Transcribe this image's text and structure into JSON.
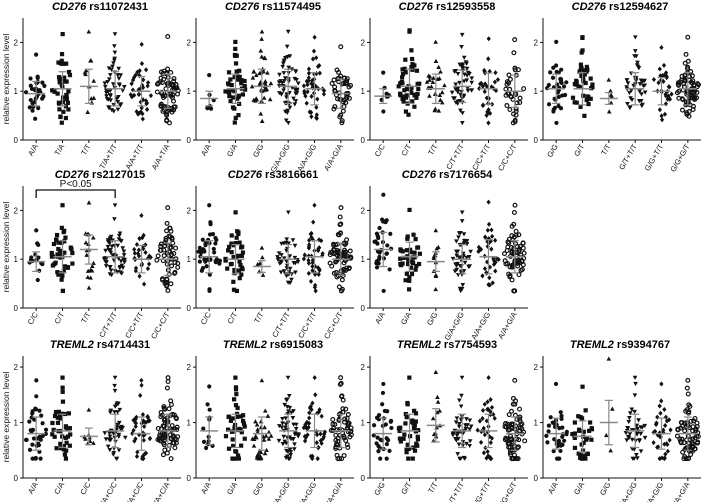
{
  "chart_data": [
    {
      "type": "scatter",
      "gene": "CD276",
      "snp": "rs11072431",
      "ylabel": "relative expression level",
      "ylim": [
        0,
        2.5
      ],
      "yticks": [
        "0",
        "1",
        "2"
      ],
      "categories": [
        "A/A",
        "T/A",
        "T/T",
        "T/A+T/T",
        "A/A+T/T",
        "A/A+T/A"
      ],
      "counts": [
        30,
        42,
        12,
        48,
        38,
        70
      ],
      "centers": [
        0.95,
        1.05,
        1.1,
        1.05,
        1.0,
        1.0
      ],
      "spreads": [
        0.25,
        0.35,
        0.35,
        0.35,
        0.3,
        0.35
      ],
      "shapes": [
        "circle",
        "square",
        "triangle",
        "tri-down",
        "diamond",
        "open-circle"
      ]
    },
    {
      "type": "scatter",
      "gene": "CD276",
      "snp": "rs11574495",
      "ylabel": "",
      "ylim": [
        0,
        2.5
      ],
      "yticks": [
        "0",
        "1",
        "2"
      ],
      "categories": [
        "A/A",
        "G/A",
        "G/G",
        "G/A+G/G",
        "A/A+G/G",
        "A/A+G/A"
      ],
      "counts": [
        6,
        42,
        40,
        58,
        44,
        46
      ],
      "centers": [
        0.85,
        1.05,
        1.1,
        1.1,
        1.05,
        0.95
      ],
      "spreads": [
        0.15,
        0.3,
        0.35,
        0.35,
        0.33,
        0.3
      ],
      "shapes": [
        "circle",
        "square",
        "triangle",
        "tri-down",
        "diamond",
        "open-circle"
      ]
    },
    {
      "type": "scatter",
      "gene": "CD276",
      "snp": "rs12593558",
      "ylabel": "",
      "ylim": [
        0,
        2.5
      ],
      "yticks": [
        "0",
        "1",
        "2"
      ],
      "categories": [
        "C/C",
        "C/T",
        "T/T",
        "C/T+T/T",
        "C/C+T/T",
        "C/C+C/T"
      ],
      "counts": [
        8,
        46,
        26,
        50,
        32,
        34
      ],
      "centers": [
        0.9,
        1.1,
        1.05,
        1.1,
        1.05,
        1.0
      ],
      "spreads": [
        0.15,
        0.35,
        0.3,
        0.33,
        0.32,
        0.33
      ],
      "shapes": [
        "circle",
        "square",
        "triangle",
        "tri-down",
        "diamond",
        "open-circle"
      ]
    },
    {
      "type": "scatter",
      "gene": "CD276",
      "snp": "rs12594627",
      "ylabel": "",
      "ylim": [
        0,
        2.5
      ],
      "yticks": [
        "0",
        "1",
        "2"
      ],
      "categories": [
        "G/G",
        "G/T",
        "T/T",
        "G/T+T/T",
        "G/G+T/T",
        "G/G+G/T"
      ],
      "counts": [
        34,
        40,
        6,
        40,
        30,
        72
      ],
      "centers": [
        1.05,
        1.05,
        0.85,
        1.05,
        1.0,
        1.05
      ],
      "spreads": [
        0.3,
        0.33,
        0.12,
        0.33,
        0.28,
        0.33
      ],
      "shapes": [
        "circle",
        "square",
        "triangle",
        "tri-down",
        "diamond",
        "open-circle"
      ]
    },
    {
      "type": "scatter",
      "gene": "CD276",
      "snp": "rs2127015",
      "ylabel": "relative expression level",
      "ylim": [
        0,
        2.5
      ],
      "yticks": [
        "0",
        "1",
        "2"
      ],
      "categories": [
        "C/C",
        "C/T",
        "T/T",
        "C/T+T/T",
        "C/C+T/T",
        "C/C+C/T"
      ],
      "counts": [
        14,
        44,
        18,
        56,
        28,
        58
      ],
      "centers": [
        0.95,
        1.05,
        1.2,
        1.05,
        1.0,
        1.0
      ],
      "spreads": [
        0.2,
        0.33,
        0.3,
        0.33,
        0.28,
        0.33
      ],
      "shapes": [
        "circle",
        "square",
        "triangle",
        "tri-down",
        "diamond",
        "open-circle"
      ],
      "annotation": {
        "text": "P<0.05",
        "from_category": 0,
        "to_category": 3
      }
    },
    {
      "type": "scatter",
      "gene": "CD276",
      "snp": "rs3816661",
      "ylabel": "",
      "ylim": [
        0,
        2.5
      ],
      "yticks": [
        "0",
        "1",
        "2"
      ],
      "categories": [
        "C/C",
        "C/T",
        "T/T",
        "C/T+T/T",
        "C/C+T/T",
        "C/C+C/T"
      ],
      "counts": [
        40,
        38,
        6,
        40,
        40,
        72
      ],
      "centers": [
        1.05,
        1.0,
        0.85,
        1.0,
        1.05,
        1.0
      ],
      "spreads": [
        0.33,
        0.3,
        0.12,
        0.3,
        0.33,
        0.33
      ],
      "shapes": [
        "circle",
        "square",
        "triangle",
        "tri-down",
        "diamond",
        "open-circle"
      ]
    },
    {
      "type": "scatter",
      "gene": "CD276",
      "snp": "rs7176654",
      "ylabel": "",
      "ylim": [
        0,
        2.5
      ],
      "yticks": [
        "0",
        "1",
        "2"
      ],
      "categories": [
        "A/A",
        "G/A",
        "G/G",
        "G/A+G/G",
        "A/A+G/G",
        "A/A+G/A"
      ],
      "counts": [
        32,
        38,
        12,
        46,
        36,
        70
      ],
      "centers": [
        1.2,
        1.05,
        0.95,
        1.0,
        1.05,
        1.05
      ],
      "spreads": [
        0.35,
        0.3,
        0.2,
        0.3,
        0.35,
        0.33
      ],
      "shapes": [
        "circle",
        "square",
        "triangle",
        "tri-down",
        "diamond",
        "open-circle"
      ]
    },
    {
      "type": "scatter",
      "gene": "TREML2",
      "snp": "rs4714431",
      "ylabel": "relative expression level",
      "ylim": [
        0,
        2.2
      ],
      "yticks": [
        "0",
        "1",
        "2"
      ],
      "categories": [
        "A/A",
        "C/A",
        "C/C",
        "C/A+C/C",
        "A/A+C/C",
        "A/A+C/A"
      ],
      "counts": [
        34,
        40,
        8,
        44,
        38,
        72
      ],
      "centers": [
        0.8,
        0.85,
        0.75,
        0.85,
        0.8,
        0.85
      ],
      "spreads": [
        0.3,
        0.3,
        0.15,
        0.3,
        0.3,
        0.3
      ],
      "shapes": [
        "circle",
        "square",
        "triangle",
        "tri-down",
        "diamond",
        "open-circle"
      ]
    },
    {
      "type": "scatter",
      "gene": "TREML2",
      "snp": "rs6915083",
      "ylabel": "",
      "ylim": [
        0,
        2.2
      ],
      "yticks": [
        "0",
        "1",
        "2"
      ],
      "categories": [
        "A/A",
        "G/A",
        "G/G",
        "G/A+G/G",
        "A/A+G/G",
        "A/A+G/A"
      ],
      "counts": [
        12,
        40,
        32,
        54,
        40,
        60
      ],
      "centers": [
        0.85,
        0.85,
        0.8,
        0.85,
        0.85,
        0.85
      ],
      "spreads": [
        0.25,
        0.3,
        0.3,
        0.3,
        0.3,
        0.3
      ],
      "shapes": [
        "circle",
        "square",
        "triangle",
        "tri-down",
        "diamond",
        "open-circle"
      ]
    },
    {
      "type": "scatter",
      "gene": "TREML2",
      "snp": "rs7754593",
      "ylabel": "",
      "ylim": [
        0,
        2.2
      ],
      "yticks": [
        "0",
        "1",
        "2"
      ],
      "categories": [
        "G/G",
        "G/T",
        "T/T",
        "G/T+T/T",
        "G/G+T/T",
        "G/G+G/T"
      ],
      "counts": [
        30,
        38,
        12,
        44,
        34,
        70
      ],
      "centers": [
        0.8,
        0.85,
        0.95,
        0.85,
        0.85,
        0.8
      ],
      "spreads": [
        0.28,
        0.3,
        0.3,
        0.3,
        0.3,
        0.3
      ],
      "shapes": [
        "circle",
        "square",
        "triangle",
        "tri-down",
        "diamond",
        "open-circle"
      ]
    },
    {
      "type": "scatter",
      "gene": "TREML2",
      "snp": "rs9394767",
      "ylabel": "",
      "ylim": [
        0,
        2.2
      ],
      "yticks": [
        "0",
        "1",
        "2"
      ],
      "categories": [
        "A/A",
        "G/A",
        "G/G",
        "G/A+G/G",
        "A/A+G/G",
        "A/A+G/A"
      ],
      "counts": [
        36,
        34,
        4,
        40,
        36,
        72
      ],
      "centers": [
        0.8,
        0.75,
        1.0,
        0.85,
        0.8,
        0.8
      ],
      "spreads": [
        0.28,
        0.28,
        0.4,
        0.3,
        0.28,
        0.3
      ],
      "shapes": [
        "circle",
        "square",
        "triangle",
        "tri-down",
        "diamond",
        "open-circle"
      ]
    }
  ]
}
